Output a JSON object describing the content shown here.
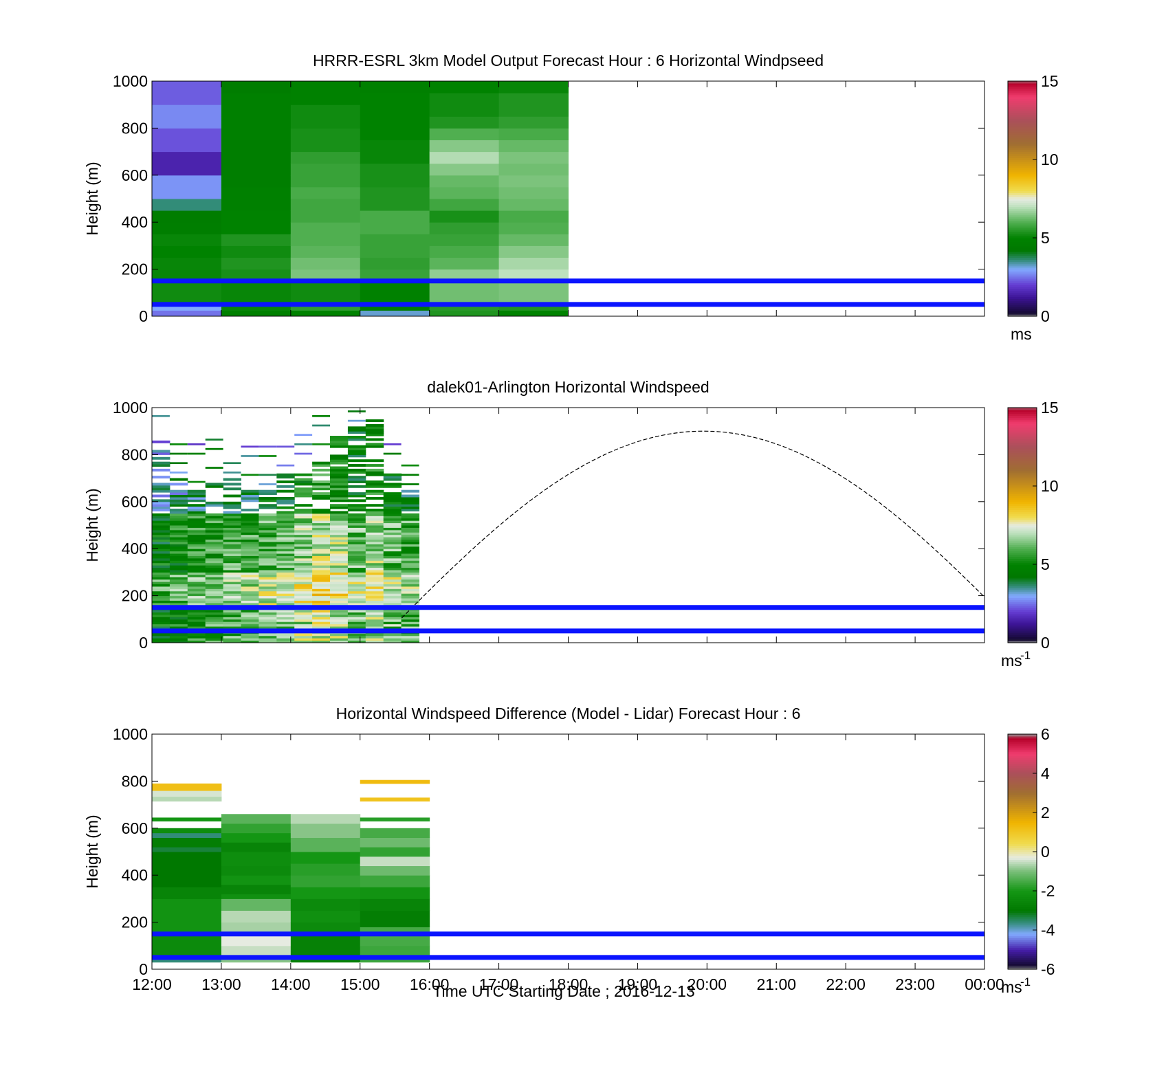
{
  "figure": {
    "x_tick_labels": [
      "12:00",
      "13:00",
      "14:00",
      "15:00",
      "16:00",
      "17:00",
      "18:00",
      "19:00",
      "20:00",
      "21:00",
      "22:00",
      "23:00",
      "00:00"
    ],
    "x_axis_label": "Time UTC  Starting Date ; 2016-12-13"
  },
  "chart_data": [
    {
      "type": "heatmap",
      "title": "HRRR-ESRL 3km Model Output   Forecast Hour : 6 Horizontal Windpseed",
      "ylabel": "Height (m)",
      "ylim": [
        0,
        1000
      ],
      "y_ticks": [
        "0",
        "200",
        "400",
        "600",
        "800",
        "1000"
      ],
      "x_ticks_hours": [
        12,
        13,
        14,
        15,
        16,
        17,
        18,
        19,
        20,
        21,
        22,
        23,
        24
      ],
      "colorbar": {
        "min": 0,
        "max": 15,
        "ticks": [
          "0",
          "5",
          "10",
          "15"
        ],
        "unit": "ms"
      },
      "reference_lines_m": [
        150,
        50
      ],
      "columns": [
        {
          "start": 12,
          "end": 13,
          "cells": [
            [
              0,
              25,
              2.5
            ],
            [
              25,
              50,
              3
            ],
            [
              50,
              150,
              5.2
            ],
            [
              150,
              250,
              5.1
            ],
            [
              250,
              300,
              5.0
            ],
            [
              300,
              350,
              5.1
            ],
            [
              350,
              400,
              4.7
            ],
            [
              400,
              450,
              4.6
            ],
            [
              450,
              500,
              3.6
            ],
            [
              500,
              600,
              2.8
            ],
            [
              600,
              700,
              1.5
            ],
            [
              700,
              800,
              2.2
            ],
            [
              800,
              900,
              2.7
            ],
            [
              900,
              1000,
              2.3
            ]
          ]
        },
        {
          "start": 13,
          "end": 14,
          "cells": [
            [
              0,
              25,
              4.8
            ],
            [
              25,
              50,
              5.1
            ],
            [
              50,
              150,
              5.1
            ],
            [
              150,
              200,
              5.3
            ],
            [
              200,
              250,
              5.4
            ],
            [
              250,
              300,
              5.2
            ],
            [
              300,
              350,
              5.4
            ],
            [
              350,
              450,
              5.0
            ],
            [
              450,
              550,
              4.8
            ],
            [
              550,
              650,
              4.7
            ],
            [
              650,
              750,
              4.7
            ],
            [
              750,
              850,
              4.8
            ],
            [
              850,
              950,
              4.8
            ],
            [
              950,
              1000,
              4.6
            ]
          ]
        },
        {
          "start": 14,
          "end": 15,
          "cells": [
            [
              0,
              25,
              5.0
            ],
            [
              25,
              50,
              5.6
            ],
            [
              50,
              150,
              5.2
            ],
            [
              150,
              200,
              6.4
            ],
            [
              200,
              250,
              6.3
            ],
            [
              250,
              300,
              6.1
            ],
            [
              300,
              350,
              6.0
            ],
            [
              350,
              400,
              6.0
            ],
            [
              400,
              450,
              5.8
            ],
            [
              450,
              500,
              5.8
            ],
            [
              500,
              550,
              5.9
            ],
            [
              550,
              600,
              5.7
            ],
            [
              600,
              650,
              5.7
            ],
            [
              650,
              700,
              5.6
            ],
            [
              700,
              750,
              5.3
            ],
            [
              750,
              800,
              5.3
            ],
            [
              800,
              900,
              5.2
            ],
            [
              900,
              1000,
              4.9
            ]
          ]
        },
        {
          "start": 15,
          "end": 16,
          "cells": [
            [
              0,
              25,
              3.2
            ],
            [
              25,
              50,
              4.6
            ],
            [
              50,
              150,
              4.9
            ],
            [
              150,
              200,
              5.7
            ],
            [
              200,
              250,
              5.6
            ],
            [
              250,
              350,
              5.7
            ],
            [
              350,
              450,
              5.9
            ],
            [
              450,
              550,
              5.4
            ],
            [
              550,
              650,
              5.3
            ],
            [
              650,
              750,
              5.1
            ],
            [
              750,
              850,
              5.0
            ],
            [
              850,
              950,
              5.0
            ],
            [
              950,
              1000,
              4.8
            ]
          ]
        },
        {
          "start": 16,
          "end": 17,
          "cells": [
            [
              0,
              25,
              5.4
            ],
            [
              25,
              50,
              5.5
            ],
            [
              50,
              150,
              6.3
            ],
            [
              150,
              200,
              6.6
            ],
            [
              200,
              250,
              6.1
            ],
            [
              250,
              300,
              5.9
            ],
            [
              300,
              350,
              5.7
            ],
            [
              350,
              400,
              5.6
            ],
            [
              400,
              450,
              5.3
            ],
            [
              450,
              500,
              5.8
            ],
            [
              500,
              550,
              6.1
            ],
            [
              550,
              600,
              6.2
            ],
            [
              600,
              650,
              6.5
            ],
            [
              650,
              700,
              6.9
            ],
            [
              700,
              750,
              6.5
            ],
            [
              750,
              800,
              6.0
            ],
            [
              800,
              850,
              5.4
            ],
            [
              850,
              950,
              5.2
            ],
            [
              950,
              1000,
              5.0
            ]
          ]
        },
        {
          "start": 17,
          "end": 18,
          "cells": [
            [
              0,
              25,
              5.0
            ],
            [
              25,
              50,
              5.4
            ],
            [
              50,
              150,
              6.4
            ],
            [
              150,
              200,
              7.0
            ],
            [
              200,
              250,
              6.8
            ],
            [
              250,
              300,
              6.5
            ],
            [
              300,
              350,
              6.2
            ],
            [
              350,
              400,
              6.0
            ],
            [
              400,
              450,
              5.9
            ],
            [
              450,
              500,
              6.2
            ],
            [
              500,
              550,
              6.3
            ],
            [
              550,
              600,
              6.4
            ],
            [
              600,
              650,
              6.3
            ],
            [
              650,
              700,
              6.4
            ],
            [
              700,
              750,
              6.2
            ],
            [
              750,
              800,
              5.9
            ],
            [
              800,
              850,
              5.6
            ],
            [
              850,
              950,
              5.4
            ],
            [
              950,
              1000,
              5.1
            ]
          ]
        }
      ]
    },
    {
      "type": "heatmap",
      "title": "dalek01-Arlington  Horizontal Windspeed",
      "ylabel": "Height (m)",
      "ylim": [
        0,
        1000
      ],
      "y_ticks": [
        "0",
        "200",
        "400",
        "600",
        "800",
        "1000"
      ],
      "colorbar": {
        "min": 0,
        "max": 15,
        "ticks": [
          "0",
          "5",
          "10",
          "15"
        ],
        "unit": "ms",
        "unit_exp": "-1"
      },
      "reference_lines_m": [
        150,
        50
      ],
      "sun_curve": {
        "start_hour": 15.6,
        "end_hour": 24,
        "peak_hour": 19.95,
        "peak_m": 900
      },
      "top_heights_m": [
        860,
        700,
        660,
        680,
        700,
        650,
        650,
        730,
        740,
        780,
        880,
        920,
        950,
        740,
        650
      ],
      "column_base_speeds": [
        4.8,
        5.2,
        5.5,
        5.6,
        6.0,
        5.8,
        6.2,
        6.3,
        6.8,
        7.3,
        7.0,
        6.4,
        6.9,
        6.3,
        5.9
      ]
    },
    {
      "type": "heatmap",
      "title": "Horizontal Windspeed Difference (Model - Lidar) Forecast Hour : 6",
      "ylabel": "Height (m)",
      "ylim": [
        0,
        1000
      ],
      "y_ticks": [
        "0",
        "200",
        "400",
        "600",
        "800",
        "1000"
      ],
      "colorbar": {
        "min": -6,
        "max": 6,
        "ticks": [
          "-6",
          "-4",
          "-2",
          "0",
          "2",
          "4",
          "6"
        ],
        "unit": "ms",
        "unit_exp": "-1"
      },
      "reference_lines_m": [
        150,
        50
      ],
      "columns": [
        {
          "start": 12,
          "end": 13,
          "cells": [
            [
              30,
              50,
              -3.6
            ],
            [
              50,
              150,
              -2.4
            ],
            [
              150,
              300,
              -2.1
            ],
            [
              300,
              350,
              -2.6
            ],
            [
              350,
              500,
              -3.0
            ],
            [
              500,
              520,
              -3.3
            ],
            [
              520,
              560,
              -2.8
            ],
            [
              560,
              580,
              -3.6
            ],
            [
              580,
              600,
              -2.3
            ],
            [
              630,
              645,
              -2.0
            ],
            [
              715,
              735,
              -0.6
            ],
            [
              735,
              760,
              -0.4
            ],
            [
              760,
              790,
              1.2
            ]
          ]
        },
        {
          "start": 13,
          "end": 14,
          "cells": [
            [
              30,
              50,
              -0.9
            ],
            [
              50,
              100,
              -0.5
            ],
            [
              100,
              150,
              -0.3
            ],
            [
              150,
              200,
              -0.7
            ],
            [
              200,
              250,
              -0.6
            ],
            [
              250,
              300,
              -1.2
            ],
            [
              300,
              320,
              -2.2
            ],
            [
              320,
              360,
              -2.6
            ],
            [
              360,
              400,
              -2.1
            ],
            [
              400,
              440,
              -2.4
            ],
            [
              440,
              500,
              -2.3
            ],
            [
              500,
              540,
              -2.6
            ],
            [
              540,
              580,
              -2.0
            ],
            [
              580,
              620,
              -1.7
            ],
            [
              620,
              660,
              -1.3
            ]
          ]
        },
        {
          "start": 14,
          "end": 15,
          "cells": [
            [
              30,
              150,
              -2.7
            ],
            [
              150,
              200,
              -2.4
            ],
            [
              200,
              250,
              -2.2
            ],
            [
              250,
              300,
              -2.4
            ],
            [
              300,
              350,
              -2.0
            ],
            [
              350,
              400,
              -1.7
            ],
            [
              400,
              450,
              -1.8
            ],
            [
              450,
              500,
              -2.0
            ],
            [
              500,
              560,
              -1.3
            ],
            [
              560,
              620,
              -0.9
            ],
            [
              620,
              660,
              -0.6
            ]
          ]
        },
        {
          "start": 15,
          "end": 16,
          "cells": [
            [
              30,
              100,
              -1.6
            ],
            [
              100,
              150,
              -1.5
            ],
            [
              150,
              180,
              -1.5
            ],
            [
              180,
              250,
              -2.8
            ],
            [
              250,
              300,
              -2.6
            ],
            [
              300,
              350,
              -2.1
            ],
            [
              350,
              400,
              -1.6
            ],
            [
              400,
              440,
              -1.1
            ],
            [
              440,
              480,
              -0.5
            ],
            [
              480,
              520,
              -1.7
            ],
            [
              520,
              560,
              -1.1
            ],
            [
              560,
              600,
              -1.5
            ],
            [
              630,
              645,
              -1.8
            ],
            [
              715,
              730,
              1.1
            ],
            [
              790,
              805,
              1.3
            ]
          ]
        }
      ]
    }
  ]
}
